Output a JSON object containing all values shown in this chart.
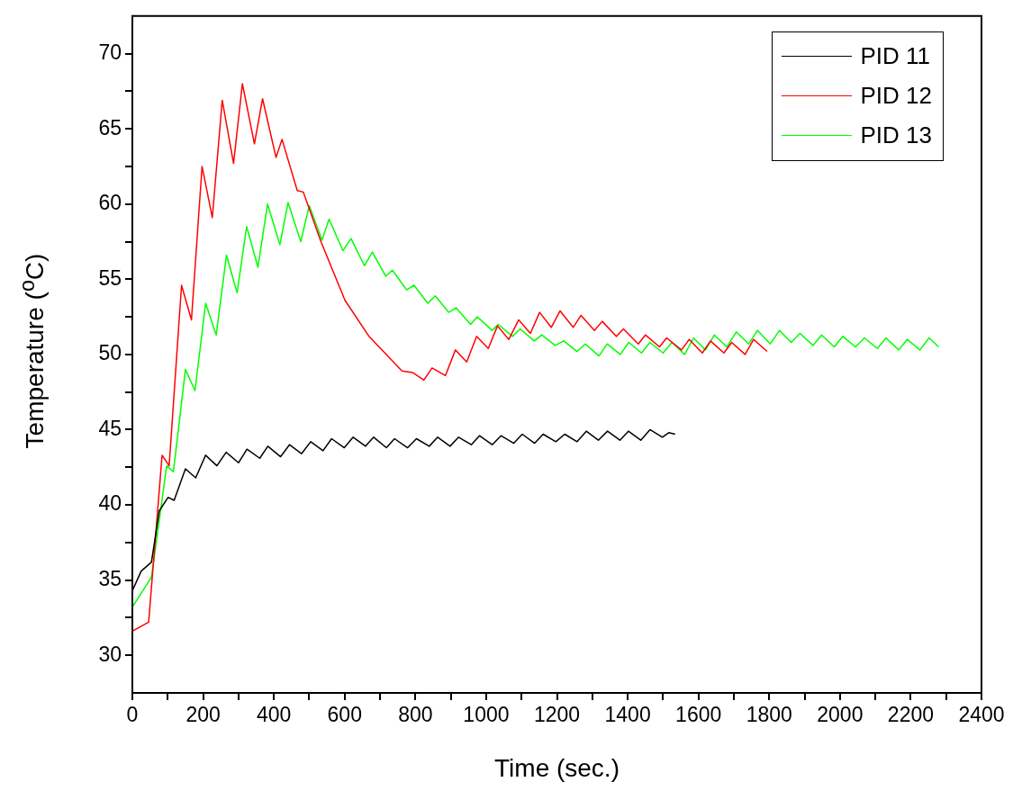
{
  "chart_data": {
    "type": "line",
    "xlabel": "Time (sec.)",
    "ylabel": "Temperature ($^{o}$C)",
    "xlim": [
      0,
      2400
    ],
    "ylim": [
      27.5,
      72.5
    ],
    "xticks": [
      0,
      {
        "value": 100,
        "label": null
      },
      200,
      {
        "value": 300,
        "label": null
      },
      400,
      {
        "value": 500,
        "label": null
      },
      600,
      {
        "value": 700,
        "label": null
      },
      800,
      {
        "value": 900,
        "label": null
      },
      1000,
      {
        "value": 1100,
        "label": null
      },
      1200,
      {
        "value": 1300,
        "label": null
      },
      1400,
      {
        "value": 1500,
        "label": null
      },
      1600,
      {
        "value": 1700,
        "label": null
      },
      1800,
      {
        "value": 1900,
        "label": null
      },
      2000,
      {
        "value": 2100,
        "label": null
      },
      2200,
      {
        "value": 2300,
        "label": null
      },
      2400
    ],
    "yticks": [
      30,
      {
        "value": 32.5,
        "label": null
      },
      35,
      {
        "value": 37.5,
        "label": null
      },
      40,
      {
        "value": 42.5,
        "label": null
      },
      45,
      {
        "value": 47.5,
        "label": null
      },
      50,
      {
        "value": 52.5,
        "label": null
      },
      55,
      {
        "value": 57.5,
        "label": null
      },
      60,
      {
        "value": 62.5,
        "label": null
      },
      65,
      {
        "value": 67.5,
        "label": null
      },
      70
    ],
    "grid": false,
    "legend": "top right",
    "marker": "none",
    "line_style": "solid",
    "series": [
      {
        "name": "PID 11",
        "color": "#000000",
        "x": [
          0,
          25,
          54,
          76,
          101,
          118,
          150,
          179,
          207,
          239,
          265,
          300,
          324,
          360,
          383,
          419,
          444,
          478,
          504,
          539,
          563,
          599,
          624,
          659,
          682,
          718,
          741,
          778,
          803,
          839,
          863,
          898,
          922,
          958,
          981,
          1017,
          1042,
          1078,
          1102,
          1137,
          1161,
          1197,
          1222,
          1257,
          1283,
          1317,
          1343,
          1378,
          1402,
          1437,
          1463,
          1498,
          1516,
          1534
        ],
        "values": [
          34.3,
          35.6,
          36.2,
          39.6,
          40.5,
          40.3,
          42.4,
          41.8,
          43.3,
          42.6,
          43.5,
          42.8,
          43.7,
          43.1,
          43.9,
          43.2,
          44.0,
          43.4,
          44.2,
          43.6,
          44.4,
          43.8,
          44.5,
          43.9,
          44.5,
          43.8,
          44.4,
          43.8,
          44.4,
          43.9,
          44.5,
          43.9,
          44.5,
          44.0,
          44.6,
          44.0,
          44.6,
          44.1,
          44.7,
          44.1,
          44.7,
          44.2,
          44.7,
          44.2,
          44.9,
          44.3,
          44.9,
          44.3,
          44.9,
          44.3,
          45.0,
          44.5,
          44.8,
          44.7
        ]
      },
      {
        "name": "PID 12",
        "color": "#ff0000",
        "x": [
          0,
          46,
          84,
          104,
          139,
          167,
          197,
          226,
          254,
          286,
          311,
          345,
          368,
          406,
          423,
          466,
          483,
          533,
          601,
          669,
          762,
          792,
          824,
          847,
          885,
          913,
          945,
          973,
          1006,
          1032,
          1064,
          1092,
          1125,
          1151,
          1184,
          1209,
          1246,
          1268,
          1306,
          1328,
          1368,
          1388,
          1430,
          1450,
          1490,
          1510,
          1552,
          1574,
          1611,
          1634,
          1672,
          1694,
          1732,
          1756,
          1794
        ],
        "values": [
          31.6,
          32.2,
          43.3,
          42.6,
          54.6,
          52.3,
          62.5,
          59.1,
          66.9,
          62.7,
          68.0,
          64.0,
          67.0,
          63.1,
          64.3,
          60.9,
          60.8,
          57.5,
          53.6,
          51.2,
          48.9,
          48.8,
          48.3,
          49.1,
          48.6,
          50.3,
          49.5,
          51.2,
          50.4,
          51.9,
          51.0,
          52.3,
          51.4,
          52.8,
          51.8,
          52.9,
          51.8,
          52.6,
          51.6,
          52.2,
          51.2,
          51.7,
          50.7,
          51.3,
          50.5,
          51.1,
          50.3,
          51.0,
          50.1,
          50.9,
          50.1,
          50.8,
          50.0,
          51.0,
          50.2
        ]
      },
      {
        "name": "PID 13",
        "color": "#00ff00",
        "x": [
          0,
          54,
          97,
          116,
          150,
          177,
          207,
          237,
          266,
          296,
          323,
          355,
          382,
          417,
          440,
          476,
          500,
          536,
          556,
          595,
          618,
          656,
          678,
          716,
          735,
          775,
          796,
          835,
          856,
          894,
          915,
          956,
          975,
          1017,
          1034,
          1075,
          1096,
          1136,
          1157,
          1195,
          1219,
          1257,
          1280,
          1319,
          1342,
          1379,
          1403,
          1439,
          1463,
          1500,
          1525,
          1561,
          1586,
          1620,
          1645,
          1680,
          1707,
          1742,
          1767,
          1803,
          1829,
          1862,
          1887,
          1924,
          1948,
          1984,
          2008,
          2044,
          2069,
          2106,
          2130,
          2166,
          2190,
          2226,
          2252,
          2279
        ],
        "values": [
          33.2,
          35.2,
          42.6,
          42.2,
          49.0,
          47.6,
          53.4,
          51.3,
          56.6,
          54.1,
          58.5,
          55.8,
          60.0,
          57.3,
          60.1,
          57.5,
          59.9,
          57.6,
          59.0,
          56.9,
          57.7,
          55.9,
          56.8,
          55.2,
          55.6,
          54.3,
          54.6,
          53.4,
          53.9,
          52.8,
          53.1,
          52.0,
          52.5,
          51.6,
          52.0,
          51.2,
          51.7,
          50.9,
          51.3,
          50.6,
          50.9,
          50.2,
          50.7,
          49.9,
          50.7,
          50.0,
          50.8,
          50.1,
          50.8,
          50.1,
          50.8,
          50.0,
          51.1,
          50.3,
          51.3,
          50.5,
          51.5,
          50.7,
          51.6,
          50.7,
          51.6,
          50.8,
          51.4,
          50.6,
          51.3,
          50.5,
          51.2,
          50.5,
          51.1,
          50.4,
          51.1,
          50.3,
          51.0,
          50.3,
          51.1,
          50.5
        ]
      }
    ]
  }
}
